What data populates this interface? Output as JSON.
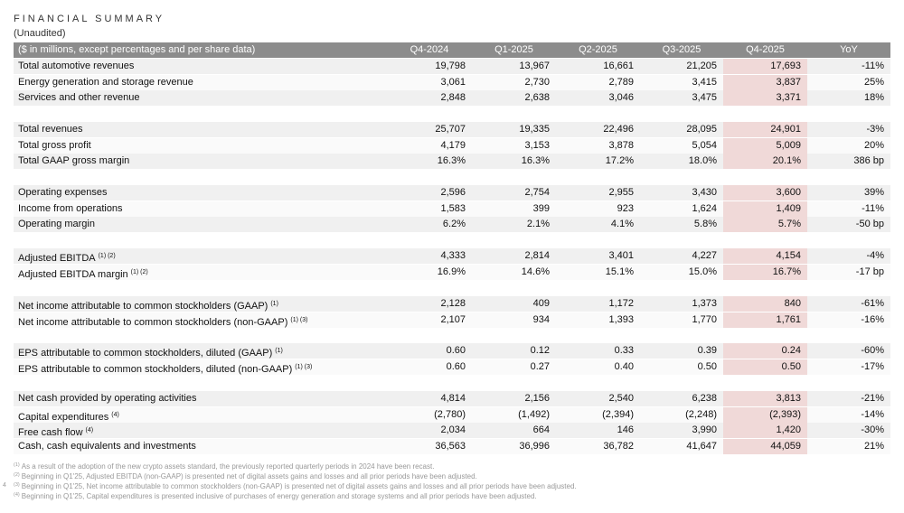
{
  "header": {
    "title": "FINANCIAL SUMMARY",
    "subtitle": "(Unaudited)"
  },
  "table": {
    "columns": [
      "($ in millions, except percentages and per share data)",
      "Q4-2024",
      "Q1-2025",
      "Q2-2025",
      "Q3-2025",
      "Q4-2025",
      "YoY"
    ],
    "groups": [
      [
        {
          "label": "Total automotive revenues",
          "values": [
            "19,798",
            "13,967",
            "16,661",
            "21,205",
            "17,693"
          ],
          "yoy": "-11%"
        },
        {
          "label": "Energy generation and storage revenue",
          "values": [
            "3,061",
            "2,730",
            "2,789",
            "3,415",
            "3,837"
          ],
          "yoy": "25%"
        },
        {
          "label": "Services and other revenue",
          "values": [
            "2,848",
            "2,638",
            "3,046",
            "3,475",
            "3,371"
          ],
          "yoy": "18%"
        }
      ],
      [
        {
          "label": "Total revenues",
          "values": [
            "25,707",
            "19,335",
            "22,496",
            "28,095",
            "24,901"
          ],
          "yoy": "-3%"
        },
        {
          "label": "Total gross profit",
          "values": [
            "4,179",
            "3,153",
            "3,878",
            "5,054",
            "5,009"
          ],
          "yoy": "20%"
        },
        {
          "label": "Total GAAP gross margin",
          "values": [
            "16.3%",
            "16.3%",
            "17.2%",
            "18.0%",
            "20.1%"
          ],
          "yoy": "386 bp"
        }
      ],
      [
        {
          "label": "Operating expenses",
          "values": [
            "2,596",
            "2,754",
            "2,955",
            "3,430",
            "3,600"
          ],
          "yoy": "39%"
        },
        {
          "label": "Income from operations",
          "values": [
            "1,583",
            "399",
            "923",
            "1,624",
            "1,409"
          ],
          "yoy": "-11%"
        },
        {
          "label": "Operating margin",
          "values": [
            "6.2%",
            "2.1%",
            "4.1%",
            "5.8%",
            "5.7%"
          ],
          "yoy": "-50 bp"
        }
      ],
      [
        {
          "label": "Adjusted EBITDA",
          "note": "(1) (2)",
          "values": [
            "4,333",
            "2,814",
            "3,401",
            "4,227",
            "4,154"
          ],
          "yoy": "-4%"
        },
        {
          "label": "Adjusted EBITDA margin",
          "note": "(1) (2)",
          "values": [
            "16.9%",
            "14.6%",
            "15.1%",
            "15.0%",
            "16.7%"
          ],
          "yoy": "-17 bp"
        }
      ],
      [
        {
          "label": "Net income attributable to common stockholders (GAAP)",
          "note": "(1)",
          "values": [
            "2,128",
            "409",
            "1,172",
            "1,373",
            "840"
          ],
          "yoy": "-61%"
        },
        {
          "label": "Net income attributable to common stockholders (non-GAAP)",
          "note": "(1) (3)",
          "values": [
            "2,107",
            "934",
            "1,393",
            "1,770",
            "1,761"
          ],
          "yoy": "-16%"
        }
      ],
      [
        {
          "label": "EPS attributable to common stockholders, diluted (GAAP)",
          "note": "(1)",
          "values": [
            "0.60",
            "0.12",
            "0.33",
            "0.39",
            "0.24"
          ],
          "yoy": "-60%"
        },
        {
          "label": "EPS attributable to common stockholders, diluted (non-GAAP)",
          "note": "(1) (3)",
          "values": [
            "0.60",
            "0.27",
            "0.40",
            "0.50",
            "0.50"
          ],
          "yoy": "-17%"
        }
      ],
      [
        {
          "label": "Net cash provided by operating activities",
          "values": [
            "4,814",
            "2,156",
            "2,540",
            "6,238",
            "3,813"
          ],
          "yoy": "-21%"
        },
        {
          "label": "Capital expenditures",
          "note": "(4)",
          "values": [
            "(2,780)",
            "(1,492)",
            "(2,394)",
            "(2,248)",
            "(2,393)"
          ],
          "yoy": "-14%"
        },
        {
          "label": "Free cash flow",
          "note": "(4)",
          "values": [
            "2,034",
            "664",
            "146",
            "3,990",
            "1,420"
          ],
          "yoy": "-30%"
        },
        {
          "label": "Cash, cash equivalents and investments",
          "values": [
            "36,563",
            "36,996",
            "36,782",
            "41,647",
            "44,059"
          ],
          "yoy": "21%"
        }
      ]
    ]
  },
  "footnotes": [
    {
      "marker": "(1)",
      "text": "As a result of the adoption of the new crypto assets standard, the previously reported quarterly periods in 2024 have been recast."
    },
    {
      "marker": "(2)",
      "text": "Beginning in Q1'25, Adjusted EBITDA (non-GAAP) is presented net of digital assets gains and losses and all prior periods have been adjusted."
    },
    {
      "marker": "(3)",
      "text": "Beginning in Q1'25, Net income attributable to common stockholders (non-GAAP) is presented net of digital assets gains and losses and all prior periods have been adjusted."
    },
    {
      "marker": "(4)",
      "text": "Beginning in Q1'25, Capital expenditures is presented inclusive of purchases of energy generation and storage systems and all prior periods have been adjusted."
    }
  ],
  "page_number": "4"
}
